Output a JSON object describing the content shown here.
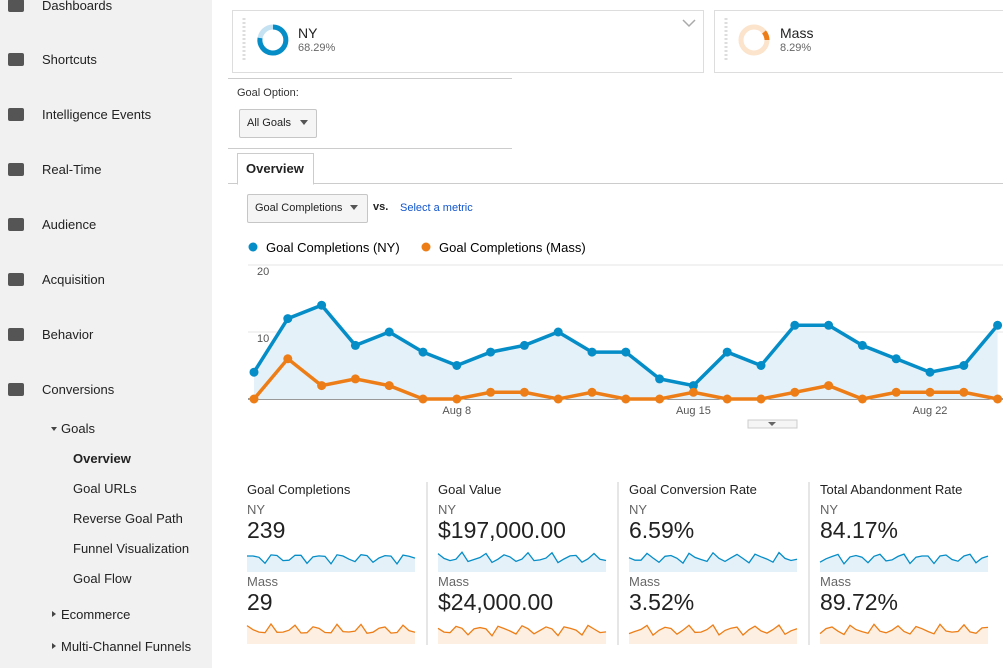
{
  "sidebar": {
    "items": [
      "Dashboards",
      "Shortcuts",
      "Intelligence Events",
      "Real-Time",
      "Audience",
      "Acquisition",
      "Behavior",
      "Conversions"
    ],
    "goals": "Goals",
    "subitems": [
      "Overview",
      "Goal URLs",
      "Reverse Goal Path",
      "Funnel Visualization",
      "Goal Flow"
    ],
    "more": [
      "Ecommerce",
      "Multi-Channel Funnels"
    ]
  },
  "segments": [
    {
      "name": "NY",
      "share": "68.29%"
    },
    {
      "name": "Mass",
      "share": "8.29%"
    }
  ],
  "goal_option": {
    "label": "Goal Option:",
    "value": "All Goals"
  },
  "tab": "Overview",
  "metric_select": {
    "value": "Goal Completions",
    "vs": "vs.",
    "link": "Select a metric"
  },
  "chart_data": {
    "type": "line",
    "categories": [
      null,
      null,
      null,
      null,
      null,
      null,
      "Aug 8",
      null,
      null,
      null,
      null,
      null,
      null,
      "Aug 15",
      null,
      null,
      null,
      null,
      null,
      null,
      "Aug 22",
      null,
      null
    ],
    "series": [
      {
        "name": "Goal Completions (NY)",
        "color": "#058dc7",
        "values": [
          4,
          12,
          14,
          8,
          10,
          7,
          5,
          7,
          8,
          10,
          7,
          7,
          3,
          2,
          7,
          5,
          11,
          11,
          8,
          6,
          4,
          5,
          11
        ]
      },
      {
        "name": "Goal Completions (Mass)",
        "color": "#ed7e17",
        "values": [
          0,
          6,
          2,
          3,
          2,
          0,
          0,
          1,
          1,
          0,
          1,
          0,
          0,
          1,
          0,
          0,
          1,
          2,
          0,
          1,
          1,
          1,
          0
        ]
      }
    ],
    "ylim": [
      0,
      20
    ],
    "yticks": [
      10,
      20
    ],
    "grid": true
  },
  "scorecards": [
    {
      "title": "Goal Completions",
      "rows": [
        {
          "segment": "NY",
          "value": "239"
        },
        {
          "segment": "Mass",
          "value": "29"
        }
      ]
    },
    {
      "title": "Goal Value",
      "rows": [
        {
          "segment": "NY",
          "value": "$197,000.00"
        },
        {
          "segment": "Mass",
          "value": "$24,000.00"
        }
      ]
    },
    {
      "title": "Goal Conversion Rate",
      "rows": [
        {
          "segment": "NY",
          "value": "6.59%"
        },
        {
          "segment": "Mass",
          "value": "3.52%"
        }
      ]
    },
    {
      "title": "Total Abandonment Rate",
      "rows": [
        {
          "segment": "NY",
          "value": "84.17%"
        },
        {
          "segment": "Mass",
          "value": "89.72%"
        }
      ]
    }
  ]
}
